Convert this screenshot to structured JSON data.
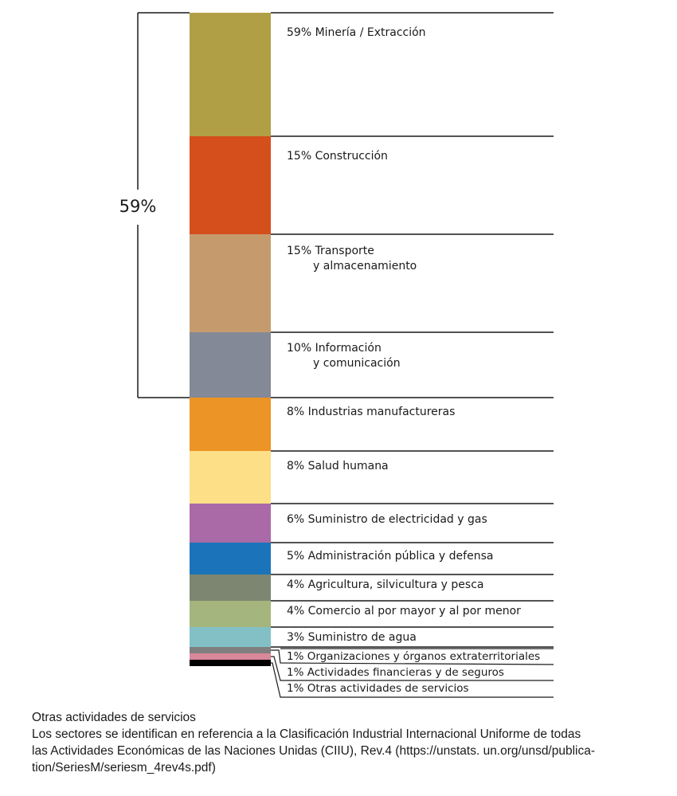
{
  "chart_data": {
    "type": "stacked-bar",
    "bracket": {
      "label": "59%",
      "covers_segments": 4
    },
    "segments": [
      {
        "value": 59,
        "label": "59% Minería / Extracción",
        "color": "#b09f45"
      },
      {
        "value": 15,
        "label": "15% Construcción",
        "color": "#d44f1b"
      },
      {
        "value": 15,
        "label": [
          "15% Transporte",
          "y almacenamiento"
        ],
        "color": "#c59b6e"
      },
      {
        "value": 10,
        "label": [
          "10% Información",
          "y comunicación"
        ],
        "color": "#838996"
      },
      {
        "value": 8,
        "label": "8% Industrias manufactureras",
        "color": "#ec9425"
      },
      {
        "value": 8,
        "label": "8% Salud humana",
        "color": "#fddf88"
      },
      {
        "value": 6,
        "label": "6% Suministro de electricidad y gas",
        "color": "#a96aa7"
      },
      {
        "value": 5,
        "label": "5% Administración pública y defensa",
        "color": "#1b74ba"
      },
      {
        "value": 4,
        "label": "4% Agricultura, silvicultura y pesca",
        "color": "#7d8671"
      },
      {
        "value": 4,
        "label": "4% Comercio al por mayor y al por menor",
        "color": "#a4b57d"
      },
      {
        "value": 3,
        "label": "3% Suministro de agua",
        "color": "#82c0c5"
      },
      {
        "value": 1,
        "label": "1% Organizaciones y órganos extraterritoriales",
        "color": "#7f7f7f"
      },
      {
        "value": 1,
        "label": "1% Actividades financieras y de seguros",
        "color": "#d9879a"
      },
      {
        "value": 1,
        "label": "1% Otras actividades de servicios",
        "color": "#000000"
      }
    ]
  },
  "footnote": {
    "title": "Otras actividades de servicios",
    "lines": [
      "Los sectores se identifican en referencia a la Clasificación Industrial Internacional Uniforme de todas",
      "las Actividades Económicas de las Naciones Unidas (CIIU), Rev.4 (https://unstats. un.org/unsd/publica-",
      "tion/SeriesM/seriesm_4rev4s.pdf)"
    ]
  }
}
